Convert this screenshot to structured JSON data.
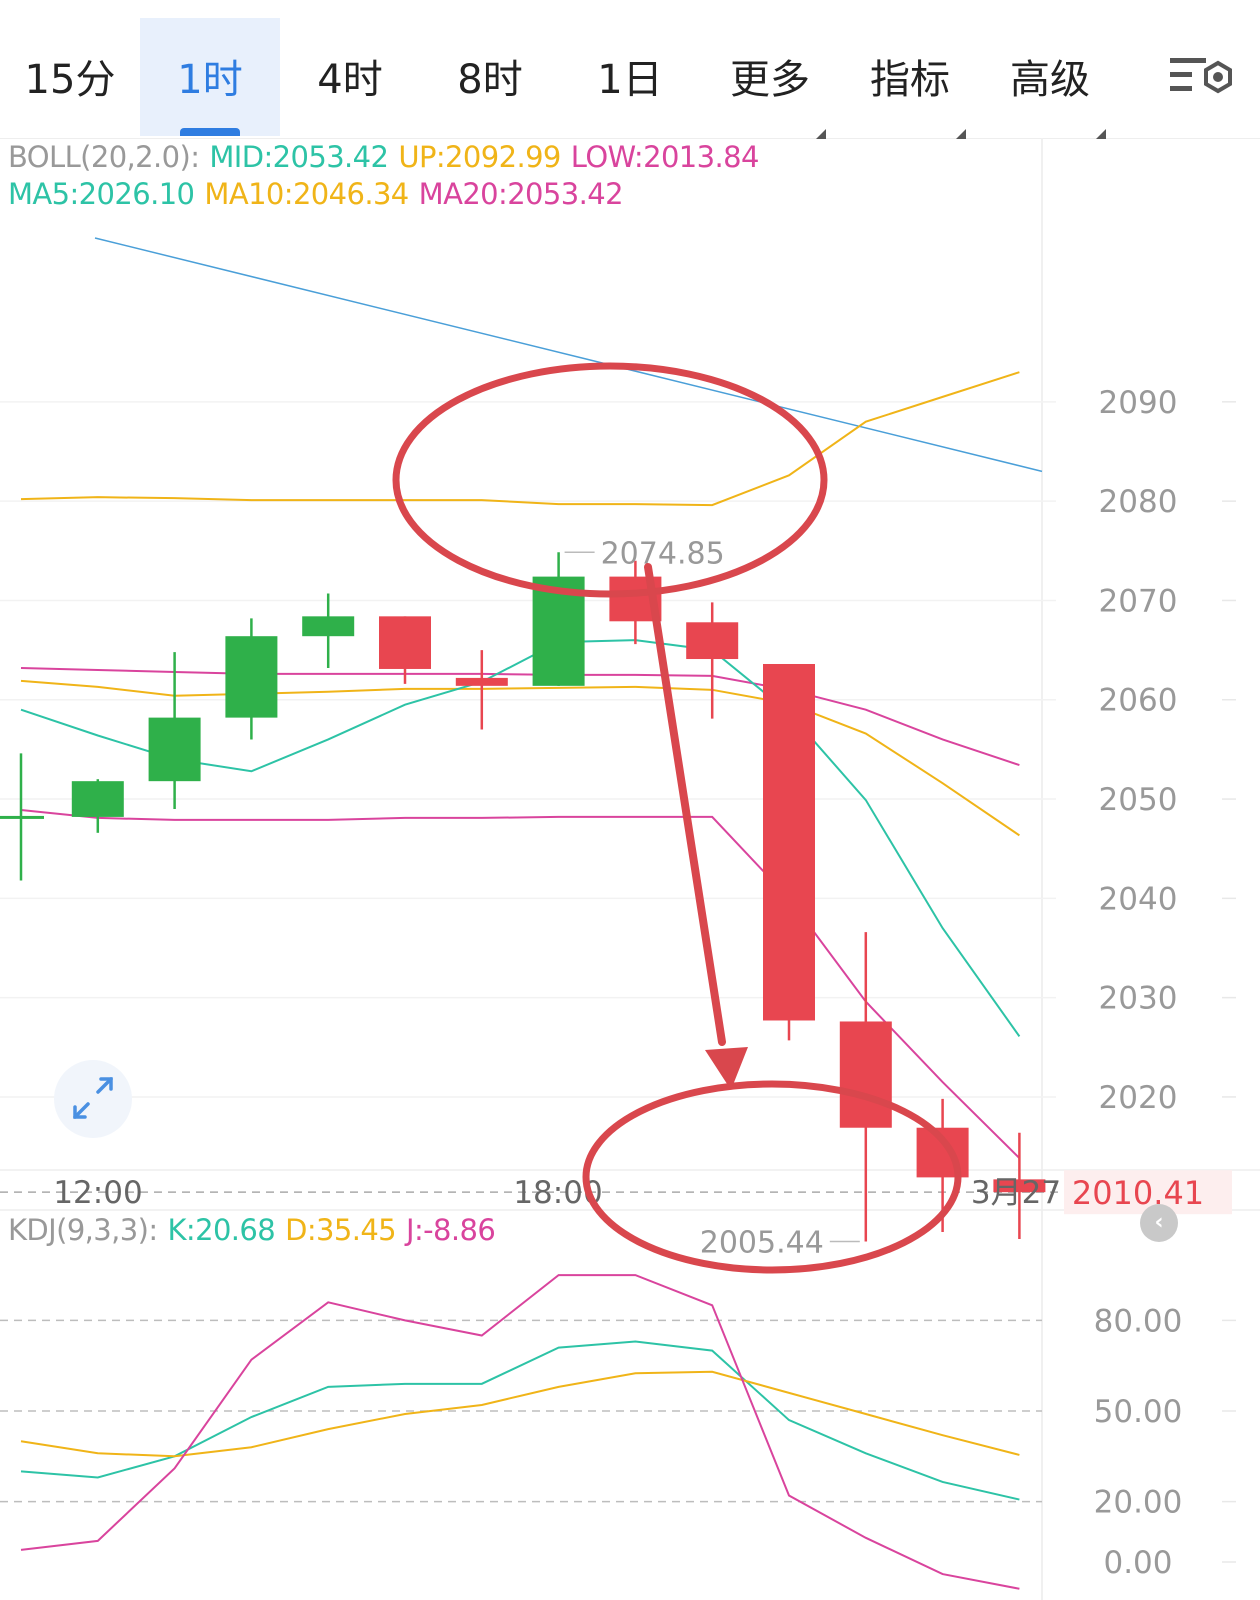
{
  "tabs": [
    {
      "label": "15分",
      "active": false,
      "has_caret": false
    },
    {
      "label": "1时",
      "active": true,
      "has_caret": false
    },
    {
      "label": "4时",
      "active": false,
      "has_caret": false
    },
    {
      "label": "8时",
      "active": false,
      "has_caret": false
    },
    {
      "label": "1日",
      "active": false,
      "has_caret": false
    },
    {
      "label": "更多",
      "active": false,
      "has_caret": true
    },
    {
      "label": "指标",
      "active": false,
      "has_caret": true
    },
    {
      "label": "高级",
      "active": false,
      "has_caret": true
    }
  ],
  "legends": {
    "boll": {
      "name": "BOLL(20,2.0):",
      "mid": "MID:2053.42",
      "up": "UP:2092.99",
      "low": "LOW:2013.84"
    },
    "ma": {
      "ma5": "MA5:2026.10",
      "ma10": "MA10:2046.34",
      "ma20": "MA20:2053.42"
    },
    "kdj": {
      "name": "KDJ(9,3,3):",
      "k": "K:20.68",
      "d": "D:35.45",
      "j": "J:-8.86"
    }
  },
  "colors": {
    "up": "#2fb04a",
    "down": "#e84650",
    "teal": "#2dc3a6",
    "gold": "#f0b418",
    "magenta": "#d9449d",
    "trendline": "#4a9fd8",
    "annotation": "#d9474d",
    "axis_text": "#999999",
    "price_tag": "#e84650"
  },
  "chart_data": [
    {
      "type": "candlestick",
      "title": "",
      "x_ticks": [
        "12:00",
        "18:00",
        "3月27"
      ],
      "y_ticks": [
        2090,
        2080,
        2070,
        2060,
        2050,
        2040,
        2030,
        2020
      ],
      "ylim": [
        2001,
        2106
      ],
      "last_price": "2010.41",
      "marked_high": "2074.85",
      "marked_low": "2005.44",
      "candles": [
        {
          "o": 2048.2,
          "h": 2054.6,
          "l": 2041.8,
          "c": 2048.3
        },
        {
          "o": 2048.2,
          "h": 2052.0,
          "l": 2046.6,
          "c": 2051.8
        },
        {
          "o": 2051.8,
          "h": 2064.8,
          "l": 2049.0,
          "c": 2058.2
        },
        {
          "o": 2058.2,
          "h": 2068.2,
          "l": 2056.0,
          "c": 2066.4
        },
        {
          "o": 2066.4,
          "h": 2070.7,
          "l": 2063.2,
          "c": 2068.4
        },
        {
          "o": 2068.4,
          "h": 2068.4,
          "l": 2061.6,
          "c": 2063.1
        },
        {
          "o": 2062.2,
          "h": 2065.0,
          "l": 2057.0,
          "c": 2061.4
        },
        {
          "o": 2061.4,
          "h": 2074.85,
          "l": 2061.4,
          "c": 2072.4
        },
        {
          "o": 2072.4,
          "h": 2074.0,
          "l": 2065.6,
          "c": 2067.9
        },
        {
          "o": 2067.8,
          "h": 2069.8,
          "l": 2058.1,
          "c": 2064.1
        },
        {
          "o": 2063.6,
          "h": 2063.6,
          "l": 2025.7,
          "c": 2027.7
        },
        {
          "o": 2027.6,
          "h": 2036.6,
          "l": 2005.44,
          "c": 2016.9
        },
        {
          "o": 2016.9,
          "h": 2019.8,
          "l": 2006.4,
          "c": 2011.9
        },
        {
          "o": 2011.7,
          "h": 2016.4,
          "l": 2005.7,
          "c": 2010.41
        }
      ],
      "series": [
        {
          "name": "UP",
          "color": "gold",
          "values": [
            2080.2,
            2080.4,
            2080.3,
            2080.1,
            2080.1,
            2080.1,
            2080.1,
            2079.7,
            2079.7,
            2079.6,
            2082.6,
            2088.0,
            2090.5,
            2092.99
          ]
        },
        {
          "name": "MID",
          "color": "magenta",
          "values": [
            2063.2,
            2063.0,
            2062.8,
            2062.6,
            2062.6,
            2062.6,
            2062.6,
            2062.5,
            2062.5,
            2062.4,
            2061.0,
            2059.0,
            2056.0,
            2053.42
          ]
        },
        {
          "name": "LOW",
          "color": "magenta",
          "values": [
            2048.9,
            2048.1,
            2047.9,
            2047.9,
            2047.9,
            2048.1,
            2048.1,
            2048.2,
            2048.2,
            2048.2,
            2040.0,
            2029.6,
            2021.5,
            2013.84
          ]
        },
        {
          "name": "MA10",
          "color": "gold",
          "values": [
            2061.9,
            2061.3,
            2060.4,
            2060.6,
            2060.8,
            2061.1,
            2061.1,
            2061.2,
            2061.3,
            2061.0,
            2059.6,
            2056.6,
            2051.6,
            2046.34
          ]
        },
        {
          "name": "MA5",
          "color": "teal",
          "values": [
            2059.0,
            2056.4,
            2054.0,
            2052.8,
            2056.0,
            2059.5,
            2061.8,
            2065.8,
            2066.0,
            2065.0,
            2058.7,
            2049.9,
            2037.0,
            2026.1
          ]
        }
      ],
      "trendline": [
        2106.5,
        2083.0
      ]
    },
    {
      "type": "line",
      "title": "",
      "y_ticks": [
        "80.00",
        "50.00",
        "20.00",
        "0.00"
      ],
      "ylim": [
        -15,
        103
      ],
      "series": [
        {
          "name": "K",
          "color": "teal",
          "values": [
            30.0,
            28.0,
            35.0,
            48.0,
            58.0,
            59.0,
            59.0,
            71.0,
            73.0,
            70.0,
            47.0,
            36.0,
            26.5,
            20.68
          ]
        },
        {
          "name": "D",
          "color": "gold",
          "values": [
            40.0,
            36.0,
            35.0,
            38.0,
            44.0,
            49.0,
            52.0,
            58.0,
            62.5,
            63.0,
            56.0,
            49.0,
            42.0,
            35.45
          ]
        },
        {
          "name": "J",
          "color": "magenta",
          "values": [
            4.0,
            7.0,
            31.0,
            67.0,
            86.0,
            80.0,
            75.0,
            95.0,
            95.0,
            85.0,
            22.0,
            8.0,
            -4.0,
            -8.86
          ]
        }
      ]
    }
  ]
}
